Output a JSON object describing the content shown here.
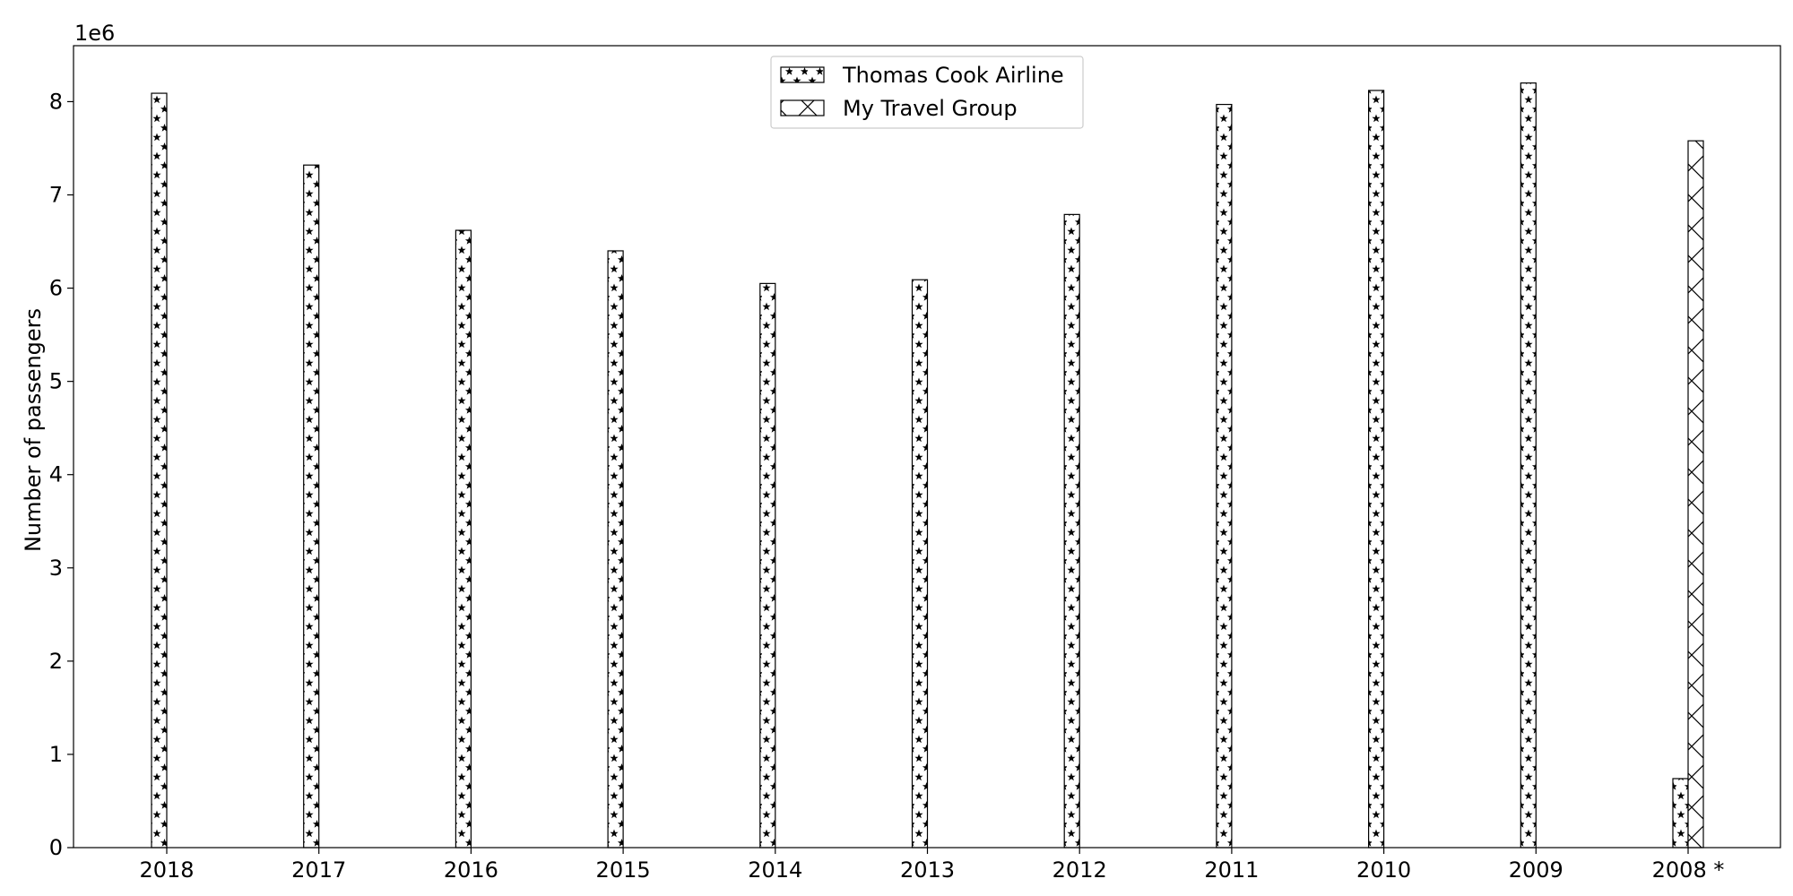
{
  "chart_data": {
    "type": "bar",
    "categories": [
      "2018",
      "2017",
      "2016",
      "2015",
      "2014",
      "2013",
      "2012",
      "2011",
      "2010",
      "2009",
      "2008 *"
    ],
    "series": [
      {
        "name": "Thomas Cook Airline",
        "pattern": "stars",
        "values": [
          8090000,
          7320000,
          6620000,
          6400000,
          6050000,
          6090000,
          6790000,
          7970000,
          8120000,
          8200000,
          740000
        ]
      },
      {
        "name": "My Travel Group",
        "pattern": "crosshatch",
        "values": [
          0,
          0,
          0,
          0,
          0,
          0,
          0,
          0,
          0,
          0,
          7580000
        ]
      }
    ],
    "ylabel": "Number of passengers",
    "y_offset_text": "1e6",
    "y_ticks": [
      0,
      1,
      2,
      3,
      4,
      5,
      6,
      7,
      8
    ],
    "ylim": [
      0,
      8600000
    ],
    "grid": false,
    "legend_position": "top-center",
    "colors": {
      "fill": "#ffffff",
      "edge": "#000000"
    }
  }
}
